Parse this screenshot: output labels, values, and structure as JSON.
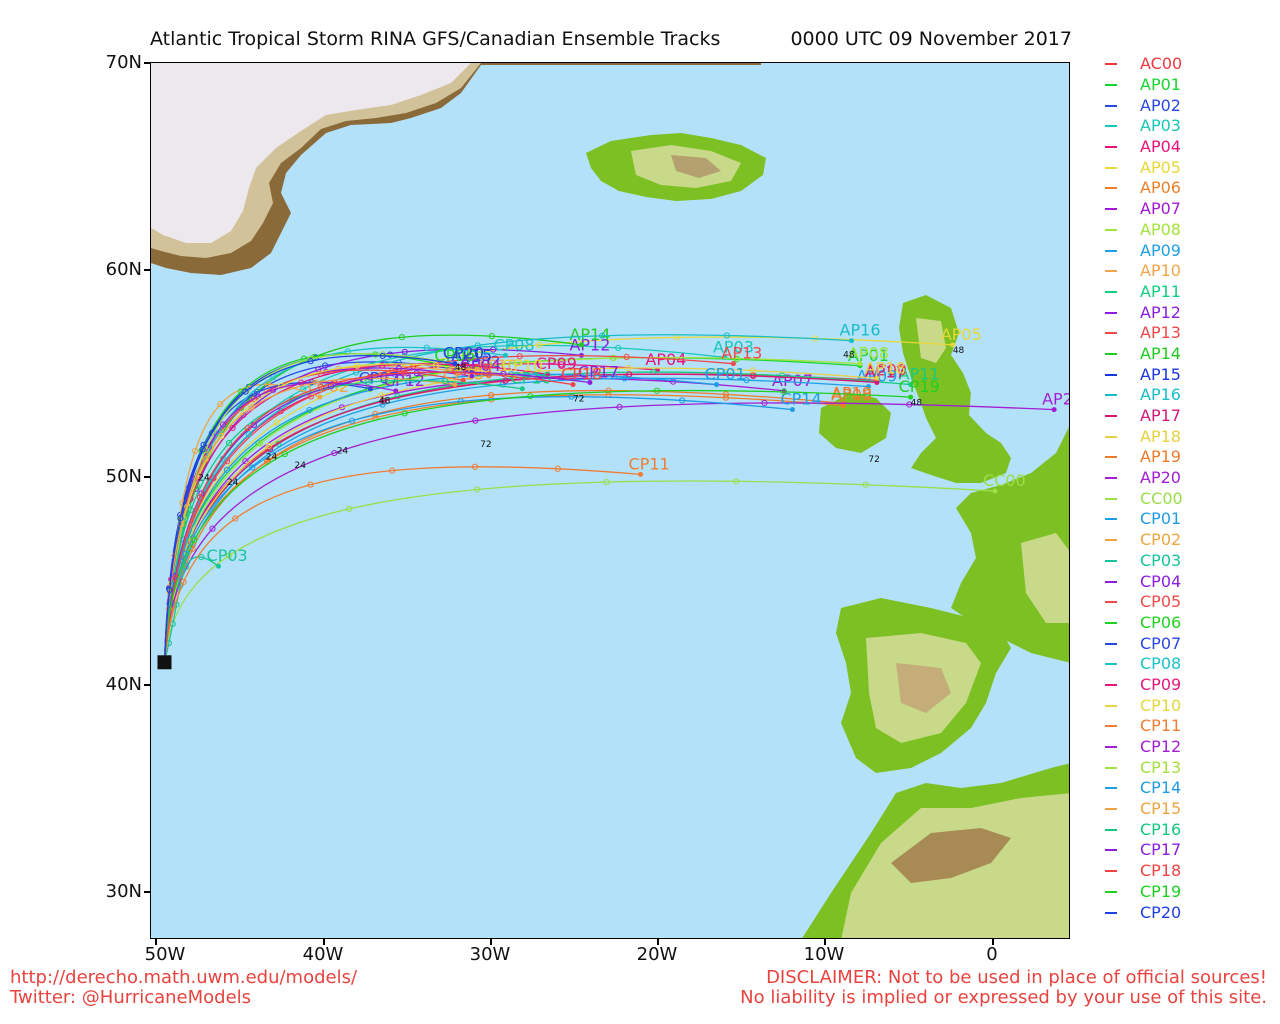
{
  "title": "Atlantic Tropical Storm RINA GFS/Canadian Ensemble Tracks",
  "datetime": "0000 UTC 09 November 2017",
  "y_ticks": [
    "70N",
    "60N",
    "50N",
    "40N",
    "30N"
  ],
  "x_ticks": [
    "50W",
    "40W",
    "30W",
    "20W",
    "10W",
    "0"
  ],
  "footer": {
    "url": "http://derecho.math.uwm.edu/models/",
    "twitter": "Twitter: @HurricaneModels",
    "disclaimer": "DISCLAIMER: Not to be used in place of official sources!",
    "liability": "No liability is implied or expressed by your use of this site."
  },
  "colors": {
    "ocean": "#b4e1fa",
    "greenland_ice": "#ede8ee",
    "land_low": "#7cc023",
    "land_mid": "#c9d98a",
    "land_high": "#a0703a",
    "footer_text": "#e8433f"
  },
  "chart_data": {
    "type": "map",
    "projection": "lat-lon",
    "lon_range": [
      -50,
      4.5
    ],
    "lat_range": [
      28,
      70
    ],
    "start_point": {
      "lon": -49.2,
      "lat": 41.3
    },
    "track_hours_labeled": [
      "24",
      "48",
      "72"
    ],
    "series": [
      {
        "name": "AC00",
        "color": "#f0383f",
        "end": [
          -7.0,
          54.8
        ]
      },
      {
        "name": "AP01",
        "color": "#17d42e",
        "end": [
          -8.0,
          55.5
        ]
      },
      {
        "name": "AP02",
        "color": "#2a48e6",
        "end": [
          -31.0,
          55.2
        ]
      },
      {
        "name": "AP03",
        "color": "#18c7b6",
        "end": [
          -16.0,
          55.9
        ]
      },
      {
        "name": "AP04",
        "color": "#e8127a",
        "end": [
          -20.0,
          55.3
        ]
      },
      {
        "name": "AP05",
        "color": "#e6d937",
        "end": [
          -2.5,
          56.5
        ]
      },
      {
        "name": "AP06",
        "color": "#f07f2a",
        "end": [
          -9.0,
          53.6
        ]
      },
      {
        "name": "AP07",
        "color": "#a418d4",
        "end": [
          -12.5,
          54.3
        ]
      },
      {
        "name": "AP08",
        "color": "#a2e33d",
        "end": [
          -8.0,
          55.6
        ]
      },
      {
        "name": "AP09",
        "color": "#1e9fe8",
        "end": [
          -7.5,
          54.5
        ]
      },
      {
        "name": "AP10",
        "color": "#f0a54a",
        "end": [
          -30.0,
          55.0
        ]
      },
      {
        "name": "AP11",
        "color": "#14cc80",
        "end": [
          -5.0,
          54.6
        ]
      },
      {
        "name": "AP12",
        "color": "#8b1ee0",
        "end": [
          -24.5,
          56.0
        ]
      },
      {
        "name": "AP13",
        "color": "#f04848",
        "end": [
          -15.5,
          55.6
        ]
      },
      {
        "name": "AP14",
        "color": "#20cc20",
        "end": [
          -24.5,
          56.5
        ]
      },
      {
        "name": "AP15",
        "color": "#1a38e0",
        "end": [
          -31.5,
          55.5
        ]
      },
      {
        "name": "AP16",
        "color": "#18bdc7",
        "end": [
          -8.5,
          56.7
        ]
      },
      {
        "name": "AP17",
        "color": "#d41878",
        "end": [
          -7.0,
          54.7
        ]
      },
      {
        "name": "AP18",
        "color": "#e6d240",
        "end": [
          -7.0,
          54.9
        ]
      },
      {
        "name": "AP19",
        "color": "#ef7a2a",
        "end": [
          -9.0,
          53.7
        ]
      },
      {
        "name": "AP20",
        "color": "#a31ed4",
        "end": [
          3.5,
          53.4
        ]
      },
      {
        "name": "CC00",
        "color": "#9ade48",
        "end": [
          0.0,
          49.5
        ]
      },
      {
        "name": "CP01",
        "color": "#1e9be6",
        "end": [
          -16.5,
          54.6
        ]
      },
      {
        "name": "CP02",
        "color": "#eea540",
        "end": [
          -40.0,
          54.0
        ]
      },
      {
        "name": "CP03",
        "color": "#18c49a",
        "end": [
          -46.0,
          45.9
        ]
      },
      {
        "name": "CP04",
        "color": "#8c1ee3",
        "end": [
          -31.0,
          55.0
        ]
      },
      {
        "name": "CP05",
        "color": "#f04a4a",
        "end": [
          -31.5,
          54.8
        ]
      },
      {
        "name": "CP06",
        "color": "#1ed41e",
        "end": [
          -32.5,
          55.5
        ]
      },
      {
        "name": "CP07",
        "color": "#2a47e3",
        "end": [
          -37.0,
          54.4
        ]
      },
      {
        "name": "CP08",
        "color": "#18c2c6",
        "end": [
          -29.0,
          56.0
        ]
      },
      {
        "name": "CP09",
        "color": "#e4187a",
        "end": [
          -26.5,
          55.1
        ]
      },
      {
        "name": "CP10",
        "color": "#e4d83e",
        "end": [
          -28.5,
          55.0
        ]
      },
      {
        "name": "CP11",
        "color": "#ef7d33",
        "end": [
          -21.0,
          50.3
        ]
      },
      {
        "name": "CP12",
        "color": "#a21ed3",
        "end": [
          -35.5,
          54.3
        ]
      },
      {
        "name": "CP13",
        "color": "#a3e042",
        "end": [
          -32.0,
          55.6
        ]
      },
      {
        "name": "CP14",
        "color": "#1e9ce4",
        "end": [
          -12.0,
          53.4
        ]
      },
      {
        "name": "CP15",
        "color": "#eea342",
        "end": [
          -32.0,
          54.6
        ]
      },
      {
        "name": "CP16",
        "color": "#15c87e",
        "end": [
          -28.0,
          54.4
        ]
      },
      {
        "name": "CP17",
        "color": "#8b1ee0",
        "end": [
          -24.0,
          54.7
        ]
      },
      {
        "name": "CP18",
        "color": "#f04444",
        "end": [
          -25.0,
          54.6
        ]
      },
      {
        "name": "CP19",
        "color": "#1fd01f",
        "end": [
          -5.0,
          54.0
        ]
      },
      {
        "name": "CP20",
        "color": "#2040e2",
        "end": [
          -32.0,
          55.6
        ]
      }
    ]
  }
}
